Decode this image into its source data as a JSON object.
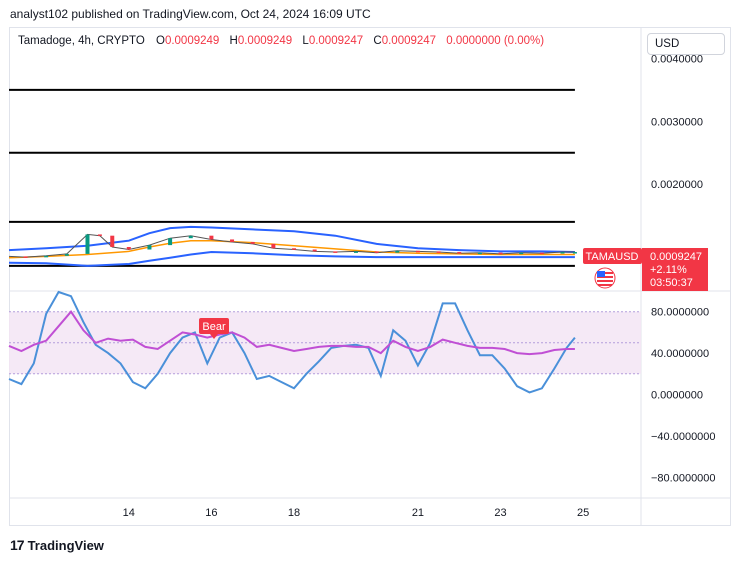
{
  "header": {
    "publisher_line": "analyst102 published on TradingView.com, Oct 24, 2024 16:09 UTC"
  },
  "legend": {
    "symbol": "Tamadoge, 4h, CRYPTO",
    "o_key": "O",
    "o_val": "0.0009249",
    "h_key": "H",
    "h_val": "0.0009249",
    "l_key": "L",
    "l_val": "0.0009247",
    "c_key": "C",
    "c_val": "0.0009247",
    "change": "0.0000000 (0.00%)"
  },
  "currency_button": "USD",
  "price_badge": {
    "ticker": "TAMAUSD",
    "price": "0.0009247",
    "change_pct": "+2.11%",
    "countdown": "03:50:37",
    "color": "#f23645"
  },
  "bear_label": "Bear",
  "footer": {
    "logo_mark": "17",
    "logo_text": "TradingView"
  },
  "colors": {
    "bollinger": "#2962ff",
    "basis": "#ff9800",
    "stoch_k": "#4a90d9",
    "stoch_d": "#c04fd4",
    "up": "#089981",
    "down": "#f23645",
    "band_fill": "#f3e5f5"
  },
  "chart_data": [
    {
      "type": "line",
      "panel": "price",
      "ylim": [
        0.0003,
        0.0045
      ],
      "y_ticks": [
        "0.0040000",
        "0.0030000",
        "0.0020000"
      ],
      "y_tick_values": [
        0.004,
        0.003,
        0.002
      ],
      "x_ticks": [
        "14",
        "16",
        "18",
        "21",
        "23",
        "25"
      ],
      "x_tick_values": [
        14,
        16,
        18,
        21,
        23,
        25
      ],
      "xlim": [
        11.1,
        26.4
      ],
      "horizontal_levels": [
        0.0035,
        0.0025,
        0.0014,
        0.0007
      ],
      "series": [
        {
          "role": "bollinger-upper",
          "x": [
            11.1,
            12,
            13,
            14,
            14.5,
            15,
            15.5,
            16,
            17,
            18,
            19,
            20,
            21,
            22,
            23,
            24,
            24.8
          ],
          "y": [
            0.00095,
            0.00098,
            0.00102,
            0.0011,
            0.00122,
            0.0013,
            0.00132,
            0.00131,
            0.00128,
            0.00125,
            0.00118,
            0.00105,
            0.00098,
            0.00095,
            0.00093,
            0.00093,
            0.00092
          ]
        },
        {
          "role": "bollinger-basis",
          "x": [
            11.1,
            12,
            13,
            14,
            14.5,
            15,
            15.5,
            16,
            17,
            18,
            19,
            20,
            21,
            22,
            23,
            24,
            24.8
          ],
          "y": [
            0.00083,
            0.00085,
            0.00088,
            0.00093,
            0.001,
            0.00106,
            0.0011,
            0.0011,
            0.00107,
            0.00102,
            0.00097,
            0.00092,
            0.0009,
            0.00089,
            0.00088,
            0.00088,
            0.00088
          ]
        },
        {
          "role": "bollinger-lower",
          "x": [
            11.1,
            12,
            13,
            14,
            14.5,
            15,
            15.5,
            16,
            17,
            18,
            19,
            20,
            21,
            22,
            23,
            24,
            24.8
          ],
          "y": [
            0.00075,
            0.00074,
            0.0007,
            0.00073,
            0.00078,
            0.00083,
            0.00088,
            0.00092,
            0.0009,
            0.00087,
            0.00085,
            0.00084,
            0.00084,
            0.00084,
            0.00084,
            0.00084,
            0.00084
          ]
        },
        {
          "role": "price-close",
          "x": [
            11.1,
            11.5,
            12,
            12.5,
            13,
            13.3,
            13.6,
            14,
            14.5,
            15,
            15.5,
            16,
            16.5,
            17,
            17.5,
            18,
            18.5,
            19,
            19.5,
            20,
            20.5,
            21,
            21.5,
            22,
            22.5,
            23,
            23.5,
            24,
            24.5,
            24.8
          ],
          "y": [
            0.00085,
            0.00084,
            0.00086,
            0.00089,
            0.0012,
            0.00118,
            0.001,
            0.00096,
            0.00103,
            0.00114,
            0.00118,
            0.00112,
            0.00108,
            0.00105,
            0.00098,
            0.00096,
            0.00093,
            0.00092,
            0.00093,
            0.00091,
            0.00094,
            0.00093,
            0.00092,
            0.0009,
            0.00091,
            0.00089,
            0.00091,
            0.0009,
            0.00092,
            0.00092
          ]
        }
      ]
    },
    {
      "type": "line",
      "panel": "stochastic-rsi",
      "ylim": [
        -100,
        100
      ],
      "y_ticks": [
        "80.0000000",
        "40.0000000",
        "0.0000000",
        "−40.0000000",
        "−80.0000000"
      ],
      "y_tick_values": [
        80,
        40,
        0,
        -40,
        -80
      ],
      "band": [
        20,
        80
      ],
      "midline": 50,
      "xlim": [
        11.1,
        26.4
      ],
      "series": [
        {
          "role": "k",
          "x": [
            11.1,
            11.4,
            11.7,
            12.0,
            12.3,
            12.6,
            12.9,
            13.2,
            13.5,
            13.8,
            14.1,
            14.4,
            14.7,
            15.0,
            15.3,
            15.6,
            15.9,
            16.2,
            16.5,
            16.8,
            17.1,
            17.4,
            17.7,
            18.0,
            18.3,
            18.6,
            18.9,
            19.2,
            19.5,
            19.8,
            20.1,
            20.4,
            20.7,
            21.0,
            21.3,
            21.6,
            21.9,
            22.2,
            22.5,
            22.8,
            23.1,
            23.4,
            23.7,
            24.0,
            24.3,
            24.6,
            24.8
          ],
          "y": [
            15,
            10,
            30,
            78,
            99,
            95,
            70,
            48,
            40,
            30,
            12,
            6,
            20,
            40,
            55,
            60,
            30,
            55,
            60,
            40,
            15,
            18,
            12,
            6,
            20,
            32,
            45,
            47,
            48,
            45,
            18,
            62,
            52,
            28,
            50,
            88,
            88,
            62,
            38,
            38,
            25,
            8,
            2,
            6,
            25,
            45,
            55
          ]
        },
        {
          "role": "d",
          "x": [
            11.1,
            11.4,
            11.7,
            12.0,
            12.3,
            12.6,
            12.9,
            13.2,
            13.5,
            13.8,
            14.1,
            14.4,
            14.7,
            15.0,
            15.3,
            15.6,
            15.9,
            16.2,
            16.5,
            16.8,
            17.1,
            17.4,
            17.7,
            18.0,
            18.3,
            18.6,
            18.9,
            19.2,
            19.5,
            19.8,
            20.1,
            20.4,
            20.7,
            21.0,
            21.3,
            21.6,
            21.9,
            22.2,
            22.5,
            22.8,
            23.1,
            23.4,
            23.7,
            24.0,
            24.3,
            24.6,
            24.8
          ],
          "y": [
            47,
            42,
            48,
            52,
            66,
            80,
            62,
            50,
            54,
            52,
            53,
            46,
            44,
            52,
            60,
            58,
            55,
            58,
            60,
            55,
            46,
            48,
            45,
            42,
            44,
            46,
            47,
            47,
            46,
            46,
            40,
            52,
            46,
            42,
            46,
            53,
            50,
            47,
            45,
            45,
            44,
            40,
            39,
            40,
            43,
            44,
            44
          ]
        }
      ]
    }
  ]
}
